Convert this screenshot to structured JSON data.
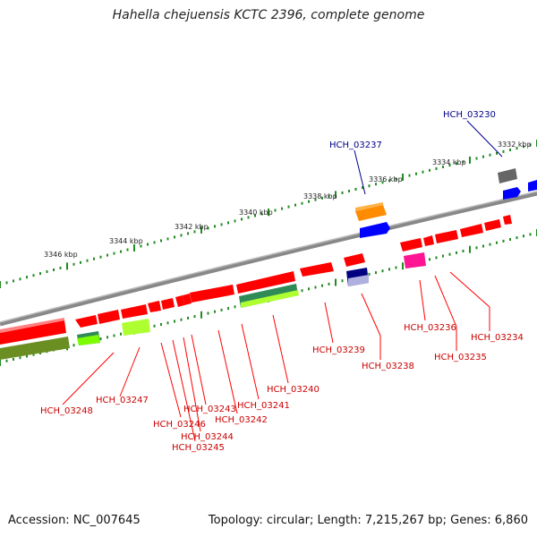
{
  "title": "Hahella chejuensis KCTC 2396, complete genome",
  "footer": {
    "accession": "Accession: NC_007645",
    "info": "Topology: circular; Length: 7,215,267 bp; Genes: 6,860"
  },
  "colors": {
    "forward_gene": "#ff0000",
    "reverse_gene": "#ff0000",
    "backbone": "#888888",
    "ticks": "#228b22",
    "highlight_label": "#00008b",
    "gene_label": "#cc0000"
  },
  "kbp_labels": [
    "3332 kbp",
    "3334 kbp",
    "3336 kbp",
    "3338 kbp",
    "3340 kbp",
    "3342 kbp",
    "3344 kbp",
    "3346 kbp"
  ],
  "gene_labels": {
    "top": [
      "HCH_03230",
      "HCH_03237"
    ],
    "bottom": [
      "HCH_03234",
      "HCH_03235",
      "HCH_03236",
      "HCH_03238",
      "HCH_03239",
      "HCH_03240",
      "HCH_03241",
      "HCH_03242",
      "HCH_03243",
      "HCH_03244",
      "HCH_03245",
      "HCH_03246",
      "HCH_03247",
      "HCH_03248"
    ]
  }
}
